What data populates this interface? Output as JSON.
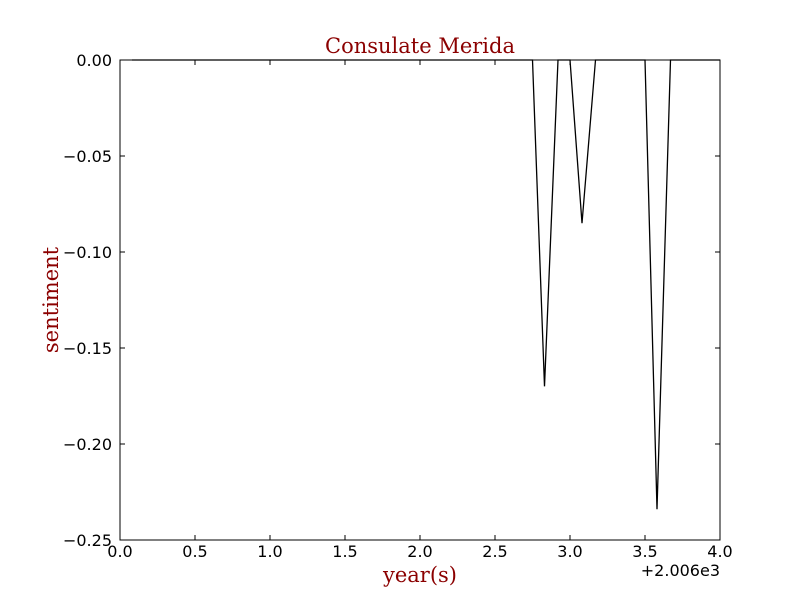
{
  "chart_data": {
    "type": "line",
    "title": "Consulate Merida",
    "xlabel": "year(s)",
    "ylabel": "sentiment",
    "x_offset_label": "+2.006e3",
    "xlim": [
      0.0,
      4.0
    ],
    "ylim": [
      -0.25,
      0.0
    ],
    "x_ticks": [
      "0.0",
      "0.5",
      "1.0",
      "1.5",
      "2.0",
      "2.5",
      "3.0",
      "3.5",
      "4.0"
    ],
    "y_ticks": [
      "0.00",
      "−0.05",
      "−0.10",
      "−0.15",
      "−0.20",
      "−0.25"
    ],
    "grid": false,
    "legend": "none",
    "series": [
      {
        "x": [
          0.08,
          2.75,
          2.83,
          2.92,
          3.0,
          3.08,
          3.17,
          3.5,
          3.58,
          3.67,
          4.0
        ],
        "y": [
          0.0,
          0.0,
          -0.17,
          0.0,
          0.0,
          -0.085,
          0.0,
          0.0,
          -0.234,
          0.0,
          0.0
        ],
        "color": "#000000"
      }
    ]
  },
  "colors": {
    "title": "#8b0000",
    "axis_label": "#8b0000",
    "line": "#000000"
  }
}
